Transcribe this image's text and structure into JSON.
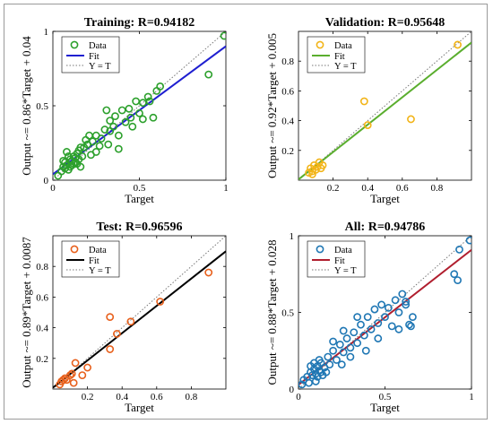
{
  "chart_data": [
    {
      "type": "scatter",
      "title": "Training: R=0.94182",
      "xlabel": "Target",
      "ylabel": "Output ~= 0.86*Target + 0.04",
      "xlim": [
        0,
        1
      ],
      "ylim": [
        0,
        1
      ],
      "xticks": [
        0,
        0.5,
        1
      ],
      "yticks": [
        0,
        0.5,
        1
      ],
      "legend_position": "top-left",
      "marker_color": "#2ca02c",
      "fit_color": "#1f1fd0",
      "fit": {
        "slope": 0.86,
        "intercept": 0.04
      },
      "series": [
        {
          "name": "Data",
          "points": [
            [
              0.03,
              0.03
            ],
            [
              0.05,
              0.06
            ],
            [
              0.06,
              0.09
            ],
            [
              0.07,
              0.12
            ],
            [
              0.08,
              0.1
            ],
            [
              0.09,
              0.07
            ],
            [
              0.1,
              0.14
            ],
            [
              0.11,
              0.1
            ],
            [
              0.12,
              0.16
            ],
            [
              0.13,
              0.12
            ],
            [
              0.14,
              0.18
            ],
            [
              0.15,
              0.14
            ],
            [
              0.16,
              0.09
            ],
            [
              0.09,
              0.16
            ],
            [
              0.11,
              0.13
            ],
            [
              0.13,
              0.15
            ],
            [
              0.07,
              0.08
            ],
            [
              0.12,
              0.11
            ],
            [
              0.1,
              0.09
            ],
            [
              0.15,
              0.2
            ],
            [
              0.08,
              0.19
            ],
            [
              0.06,
              0.13
            ],
            [
              0.17,
              0.16
            ],
            [
              0.18,
              0.22
            ],
            [
              0.14,
              0.11
            ],
            [
              0.19,
              0.27
            ],
            [
              0.2,
              0.24
            ],
            [
              0.21,
              0.3
            ],
            [
              0.23,
              0.26
            ],
            [
              0.25,
              0.3
            ],
            [
              0.27,
              0.23
            ],
            [
              0.28,
              0.28
            ],
            [
              0.3,
              0.34
            ],
            [
              0.32,
              0.24
            ],
            [
              0.33,
              0.4
            ],
            [
              0.35,
              0.36
            ],
            [
              0.36,
              0.43
            ],
            [
              0.38,
              0.3
            ],
            [
              0.4,
              0.47
            ],
            [
              0.42,
              0.39
            ],
            [
              0.44,
              0.48
            ],
            [
              0.45,
              0.42
            ],
            [
              0.48,
              0.53
            ],
            [
              0.5,
              0.45
            ],
            [
              0.52,
              0.52
            ],
            [
              0.55,
              0.56
            ],
            [
              0.58,
              0.42
            ],
            [
              0.6,
              0.6
            ],
            [
              0.62,
              0.63
            ],
            [
              0.52,
              0.41
            ],
            [
              0.46,
              0.36
            ],
            [
              0.38,
              0.21
            ],
            [
              0.31,
              0.47
            ],
            [
              0.25,
              0.19
            ],
            [
              0.9,
              0.71
            ],
            [
              0.99,
              0.97
            ],
            [
              0.56,
              0.53
            ],
            [
              0.33,
              0.33
            ],
            [
              0.22,
              0.17
            ],
            [
              0.16,
              0.22
            ]
          ]
        },
        {
          "name": "Fit"
        },
        {
          "name": "Y = T"
        }
      ]
    },
    {
      "type": "scatter",
      "title": "Validation: R=0.95648",
      "xlabel": "Target",
      "ylabel": "Output ~= 0.92*Target + 0.005",
      "xlim": [
        0,
        1
      ],
      "ylim": [
        0,
        1
      ],
      "xticks": [
        0.2,
        0.4,
        0.6,
        0.8
      ],
      "yticks": [
        0.2,
        0.4,
        0.6,
        0.8
      ],
      "legend_position": "top-left",
      "marker_color": "#f2b418",
      "fit_color": "#5aae2e",
      "fit": {
        "slope": 0.92,
        "intercept": 0.005
      },
      "series": [
        {
          "name": "Data",
          "points": [
            [
              0.06,
              0.05
            ],
            [
              0.07,
              0.08
            ],
            [
              0.08,
              0.06
            ],
            [
              0.09,
              0.1
            ],
            [
              0.1,
              0.07
            ],
            [
              0.11,
              0.09
            ],
            [
              0.12,
              0.12
            ],
            [
              0.13,
              0.08
            ],
            [
              0.14,
              0.1
            ],
            [
              0.08,
              0.04
            ],
            [
              0.38,
              0.53
            ],
            [
              0.4,
              0.37
            ],
            [
              0.65,
              0.41
            ],
            [
              0.92,
              0.91
            ]
          ]
        },
        {
          "name": "Fit"
        },
        {
          "name": "Y = T"
        }
      ]
    },
    {
      "type": "scatter",
      "title": "Test: R=0.96596",
      "xlabel": "Target",
      "ylabel": "Output ~= 0.89*Target + 0.0087",
      "xlim": [
        0,
        1
      ],
      "ylim": [
        0,
        1
      ],
      "xticks": [
        0.2,
        0.4,
        0.6,
        0.8
      ],
      "yticks": [
        0.2,
        0.4,
        0.6,
        0.8
      ],
      "legend_position": "top-left",
      "marker_color": "#e8601c",
      "fit_color": "#000000",
      "fit": {
        "slope": 0.89,
        "intercept": 0.0087
      },
      "series": [
        {
          "name": "Data",
          "points": [
            [
              0.04,
              0.03
            ],
            [
              0.05,
              0.05
            ],
            [
              0.06,
              0.06
            ],
            [
              0.07,
              0.07
            ],
            [
              0.08,
              0.06
            ],
            [
              0.1,
              0.09
            ],
            [
              0.11,
              0.1
            ],
            [
              0.12,
              0.04
            ],
            [
              0.13,
              0.17
            ],
            [
              0.17,
              0.09
            ],
            [
              0.2,
              0.14
            ],
            [
              0.33,
              0.47
            ],
            [
              0.33,
              0.26
            ],
            [
              0.37,
              0.36
            ],
            [
              0.45,
              0.44
            ],
            [
              0.62,
              0.57
            ],
            [
              0.9,
              0.76
            ]
          ]
        },
        {
          "name": "Fit"
        },
        {
          "name": "Y = T"
        }
      ]
    },
    {
      "type": "scatter",
      "title": "All: R=0.94786",
      "xlabel": "Target",
      "ylabel": "Output ~= 0.88*Target + 0.028",
      "xlim": [
        0,
        1
      ],
      "ylim": [
        0,
        1
      ],
      "xticks": [
        0,
        0.5,
        1
      ],
      "yticks": [
        0,
        0.5,
        1
      ],
      "legend_position": "top-left",
      "marker_color": "#1f77b4",
      "fit_color": "#b01e2e",
      "fit": {
        "slope": 0.88,
        "intercept": 0.028
      },
      "series": [
        {
          "name": "Data",
          "points": [
            [
              0.02,
              0.03
            ],
            [
              0.03,
              0.06
            ],
            [
              0.05,
              0.08
            ],
            [
              0.06,
              0.04
            ],
            [
              0.07,
              0.11
            ],
            [
              0.08,
              0.09
            ],
            [
              0.09,
              0.13
            ],
            [
              0.1,
              0.1
            ],
            [
              0.11,
              0.15
            ],
            [
              0.12,
              0.12
            ],
            [
              0.13,
              0.17
            ],
            [
              0.14,
              0.09
            ],
            [
              0.15,
              0.14
            ],
            [
              0.16,
              0.11
            ],
            [
              0.09,
              0.17
            ],
            [
              0.11,
              0.08
            ],
            [
              0.13,
              0.11
            ],
            [
              0.07,
              0.15
            ],
            [
              0.12,
              0.19
            ],
            [
              0.1,
              0.05
            ],
            [
              0.17,
              0.21
            ],
            [
              0.18,
              0.16
            ],
            [
              0.2,
              0.25
            ],
            [
              0.22,
              0.19
            ],
            [
              0.24,
              0.29
            ],
            [
              0.26,
              0.24
            ],
            [
              0.28,
              0.33
            ],
            [
              0.3,
              0.27
            ],
            [
              0.32,
              0.37
            ],
            [
              0.34,
              0.3
            ],
            [
              0.36,
              0.42
            ],
            [
              0.38,
              0.35
            ],
            [
              0.4,
              0.47
            ],
            [
              0.42,
              0.39
            ],
            [
              0.44,
              0.52
            ],
            [
              0.46,
              0.43
            ],
            [
              0.48,
              0.55
            ],
            [
              0.5,
              0.47
            ],
            [
              0.52,
              0.53
            ],
            [
              0.54,
              0.41
            ],
            [
              0.56,
              0.58
            ],
            [
              0.58,
              0.5
            ],
            [
              0.6,
              0.62
            ],
            [
              0.62,
              0.55
            ],
            [
              0.64,
              0.42
            ],
            [
              0.34,
              0.47
            ],
            [
              0.3,
              0.21
            ],
            [
              0.26,
              0.38
            ],
            [
              0.39,
              0.25
            ],
            [
              0.46,
              0.33
            ],
            [
              0.66,
              0.47
            ],
            [
              0.58,
              0.39
            ],
            [
              0.25,
              0.16
            ],
            [
              0.2,
              0.31
            ],
            [
              0.9,
              0.75
            ],
            [
              0.92,
              0.71
            ],
            [
              0.93,
              0.91
            ],
            [
              0.99,
              0.97
            ],
            [
              0.65,
              0.41
            ],
            [
              0.62,
              0.57
            ]
          ]
        },
        {
          "name": "Fit"
        },
        {
          "name": "Y = T"
        }
      ]
    }
  ]
}
